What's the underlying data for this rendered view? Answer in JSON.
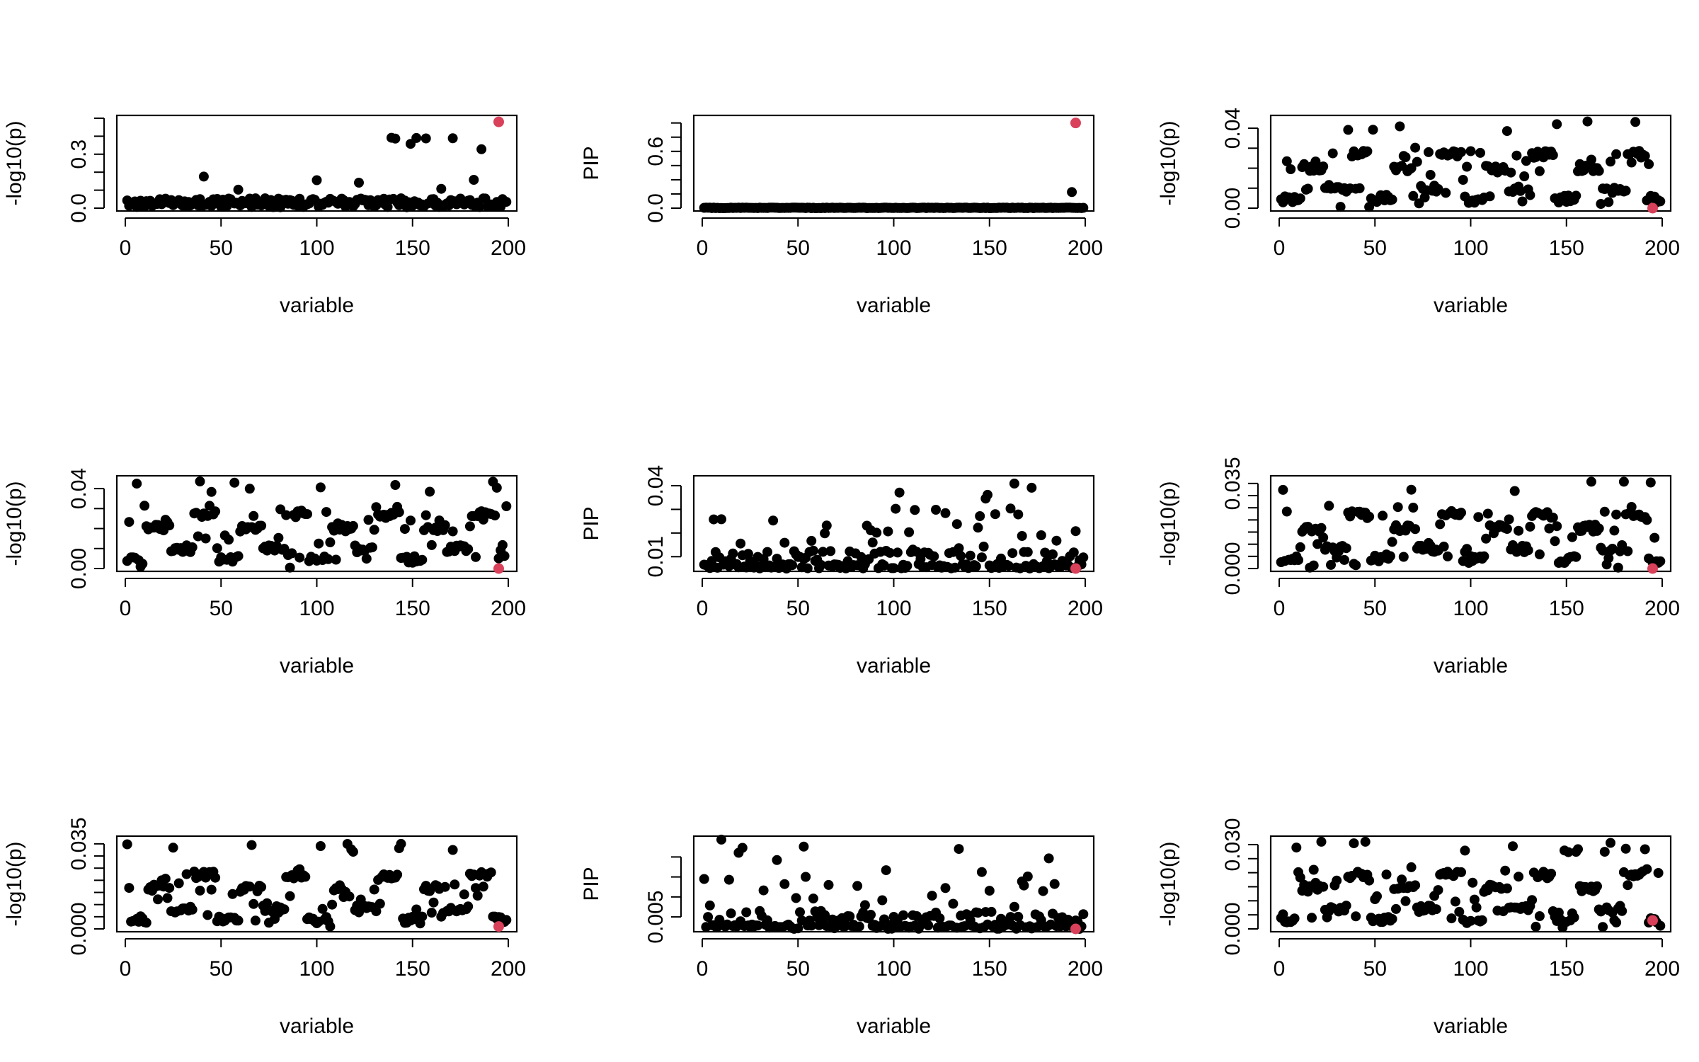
{
  "figure": {
    "title": "",
    "point_color": "#000000",
    "highlight_color": "#d9405a",
    "axis_color": "#000000"
  },
  "chart_data": [
    {
      "type": "scatter",
      "title": "",
      "xlabel": "variable",
      "ylabel": "-log10(p)",
      "xlim": [
        0,
        200
      ],
      "ylim": [
        0,
        0.5
      ],
      "xticks": [
        0,
        50,
        100,
        150,
        200
      ],
      "yticks": [
        0.0,
        0.1,
        0.2,
        0.3,
        0.4,
        0.5
      ],
      "yticklabels": [
        "0.0",
        "",
        "",
        "0.3",
        "",
        ""
      ],
      "profile": "top_left",
      "seed": 11,
      "highlight": {
        "x": 195,
        "y": 0.48
      }
    },
    {
      "type": "scatter",
      "title": "",
      "xlabel": "variable",
      "ylabel": "PIP",
      "xlim": [
        0,
        200
      ],
      "ylim": [
        0,
        0.95
      ],
      "xticks": [
        0,
        50,
        100,
        150,
        200
      ],
      "yticks": [
        0.0,
        0.15,
        0.3,
        0.45,
        0.6,
        0.75,
        0.9
      ],
      "yticklabels": [
        "0.0",
        "",
        "",
        "",
        "0.6",
        "",
        ""
      ],
      "profile": "pip_flat",
      "seed": 12,
      "highlight": {
        "x": 195,
        "y": 0.9
      }
    },
    {
      "type": "scatter",
      "title": "",
      "xlabel": "variable",
      "ylabel": "-log10(p)",
      "xlim": [
        0,
        200
      ],
      "ylim": [
        0,
        0.045
      ],
      "xticks": [
        0,
        50,
        100,
        150,
        200
      ],
      "yticks": [
        0.0,
        0.01,
        0.02,
        0.03,
        0.04
      ],
      "yticklabels": [
        "0.00",
        "",
        "",
        "",
        "0.04"
      ],
      "profile": "bands",
      "seed": 13,
      "highlight": {
        "x": 195,
        "y": 0.0
      }
    },
    {
      "type": "scatter",
      "title": "",
      "xlabel": "variable",
      "ylabel": "-log10(p)",
      "xlim": [
        0,
        200
      ],
      "ylim": [
        0,
        0.045
      ],
      "xticks": [
        0,
        50,
        100,
        150,
        200
      ],
      "yticks": [
        0.0,
        0.01,
        0.02,
        0.03,
        0.04
      ],
      "yticklabels": [
        "0.00",
        "",
        "",
        "",
        "0.04"
      ],
      "profile": "bands",
      "seed": 21,
      "highlight": {
        "x": 195,
        "y": 0.0
      }
    },
    {
      "type": "scatter",
      "title": "",
      "xlabel": "variable",
      "ylabel": "PIP",
      "xlim": [
        0,
        200
      ],
      "ylim": [
        0.005,
        0.043
      ],
      "xticks": [
        0,
        50,
        100,
        150,
        200
      ],
      "yticks": [
        0.01,
        0.02,
        0.03,
        0.04
      ],
      "yticklabels": [
        "0.01",
        "",
        "",
        "0.04"
      ],
      "profile": "pip_low",
      "seed": 22,
      "highlight": {
        "x": 195,
        "y": 0.005
      }
    },
    {
      "type": "scatter",
      "title": "",
      "xlabel": "variable",
      "ylabel": "-log10(p)",
      "xlim": [
        0,
        200
      ],
      "ylim": [
        0,
        0.037
      ],
      "xticks": [
        0,
        50,
        100,
        150,
        200
      ],
      "yticks": [
        0.0,
        0.005,
        0.01,
        0.015,
        0.02,
        0.025,
        0.03,
        0.035
      ],
      "yticklabels": [
        "0.000",
        "",
        "",
        "",
        "",
        "",
        "",
        "0.035"
      ],
      "profile": "bands",
      "seed": 23,
      "highlight": {
        "x": 195,
        "y": 0.0
      }
    },
    {
      "type": "scatter",
      "title": "",
      "xlabel": "variable",
      "ylabel": "-log10(p)",
      "xlim": [
        0,
        200
      ],
      "ylim": [
        0,
        0.037
      ],
      "xticks": [
        0,
        50,
        100,
        150,
        200
      ],
      "yticks": [
        0.0,
        0.005,
        0.01,
        0.015,
        0.02,
        0.025,
        0.03,
        0.035
      ],
      "yticklabels": [
        "0.000",
        "",
        "",
        "",
        "",
        "",
        "",
        "0.035"
      ],
      "profile": "bands",
      "seed": 31,
      "highlight": {
        "x": 195,
        "y": 0.001
      }
    },
    {
      "type": "scatter",
      "title": "",
      "xlabel": "variable",
      "ylabel": "PIP",
      "xlim": [
        0,
        200
      ],
      "ylim": [
        0.002,
        0.0245
      ],
      "xticks": [
        0,
        50,
        100,
        150,
        200
      ],
      "yticks": [
        0.005,
        0.01,
        0.015,
        0.02
      ],
      "yticklabels": [
        "0.005",
        "",
        "",
        ""
      ],
      "profile": "pip_low",
      "seed": 32,
      "highlight": {
        "x": 195,
        "y": 0.002
      }
    },
    {
      "type": "scatter",
      "title": "",
      "xlabel": "variable",
      "ylabel": "-log10(p)",
      "xlim": [
        0,
        200
      ],
      "ylim": [
        0,
        0.032
      ],
      "xticks": [
        0,
        50,
        100,
        150,
        200
      ],
      "yticks": [
        0.0,
        0.005,
        0.01,
        0.015,
        0.02,
        0.025,
        0.03
      ],
      "yticklabels": [
        "0.000",
        "",
        "",
        "",
        "",
        "",
        "0.030"
      ],
      "profile": "bands",
      "seed": 33,
      "highlight": {
        "x": 195,
        "y": 0.003
      }
    }
  ]
}
